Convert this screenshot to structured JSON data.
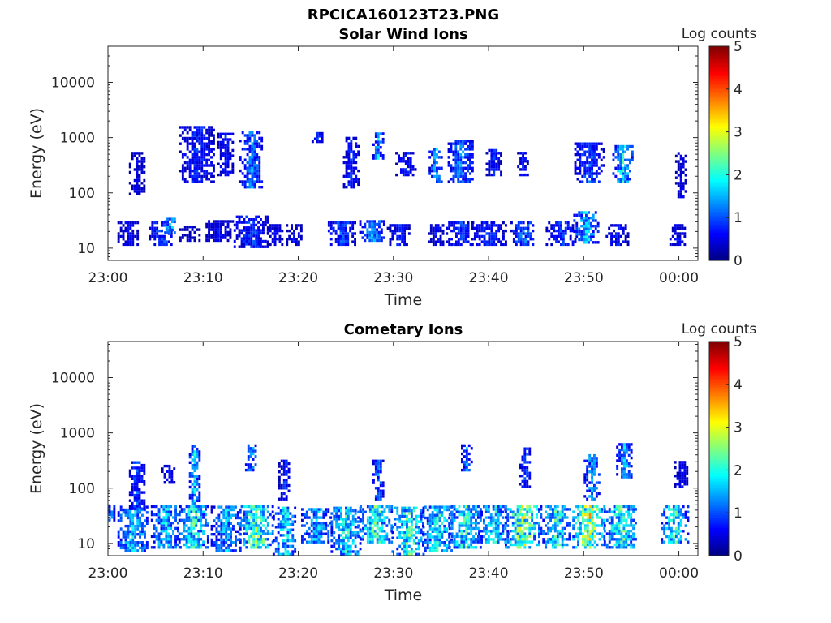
{
  "figure_title": "RPCICA160123T23.PNG",
  "chart_data": [
    {
      "type": "heatmap",
      "title": "Solar Wind Ions",
      "xlabel": "Time",
      "ylabel": "Energy (eV)",
      "x_range": [
        "23:00",
        "00:02"
      ],
      "x_ticks": [
        "23:00",
        "23:10",
        "23:20",
        "23:30",
        "23:40",
        "23:50",
        "00:00"
      ],
      "y_scale": "log",
      "y_range": [
        6,
        45000
      ],
      "y_ticks": [
        "10",
        "100",
        "1000",
        "10000"
      ],
      "colorbar": {
        "label": "Log counts",
        "range": [
          0,
          5
        ],
        "ticks": [
          "0",
          "1",
          "2",
          "3",
          "4",
          "5"
        ],
        "colormap": "jet"
      },
      "cell_minutes": 0.25,
      "clusters": [
        {
          "t": 2.0,
          "e": [
            11,
            30
          ],
          "v": 0.6,
          "s": 1.0
        },
        {
          "t": 3.0,
          "e": [
            90,
            550
          ],
          "v": 0.5,
          "s": 0.8
        },
        {
          "t": 5.5,
          "e": [
            11,
            30
          ],
          "v": 1.0,
          "s": 1.2
        },
        {
          "t": 6.5,
          "e": [
            18,
            35
          ],
          "v": 1.7,
          "s": 0.6
        },
        {
          "t": 8.5,
          "e": [
            13,
            25
          ],
          "v": 0.4,
          "s": 1.0
        },
        {
          "t": 9.3,
          "e": [
            150,
            1600
          ],
          "v": 0.8,
          "s": 1.8
        },
        {
          "t": 11.5,
          "e": [
            13,
            30
          ],
          "v": 0.6,
          "s": 1.5
        },
        {
          "t": 12.3,
          "e": [
            200,
            1200
          ],
          "v": 0.7,
          "s": 0.8
        },
        {
          "t": 15.0,
          "e": [
            10,
            35
          ],
          "v": 0.9,
          "s": 1.8
        },
        {
          "t": 15.0,
          "e": [
            120,
            1200
          ],
          "v": 1.2,
          "s": 1.2
        },
        {
          "t": 17.5,
          "e": [
            11,
            25
          ],
          "v": 0.6,
          "s": 0.8
        },
        {
          "t": 19.5,
          "e": [
            11,
            25
          ],
          "v": 0.6,
          "s": 0.8
        },
        {
          "t": 22.0,
          "e": [
            800,
            1200
          ],
          "v": 0.9,
          "s": 0.6
        },
        {
          "t": 24.5,
          "e": [
            11,
            30
          ],
          "v": 1.0,
          "s": 1.4
        },
        {
          "t": 25.5,
          "e": [
            120,
            1000
          ],
          "v": 0.8,
          "s": 0.8
        },
        {
          "t": 27.7,
          "e": [
            13,
            30
          ],
          "v": 1.3,
          "s": 1.3
        },
        {
          "t": 28.3,
          "e": [
            400,
            1200
          ],
          "v": 1.5,
          "s": 0.5
        },
        {
          "t": 30.5,
          "e": [
            11,
            25
          ],
          "v": 0.7,
          "s": 1.2
        },
        {
          "t": 31.2,
          "e": [
            200,
            500
          ],
          "v": 0.7,
          "s": 1.0
        },
        {
          "t": 34.4,
          "e": [
            11,
            25
          ],
          "v": 0.6,
          "s": 0.8
        },
        {
          "t": 34.4,
          "e": [
            150,
            600
          ],
          "v": 1.4,
          "s": 0.7
        },
        {
          "t": 37.0,
          "e": [
            11,
            30
          ],
          "v": 0.9,
          "s": 1.5
        },
        {
          "t": 37.0,
          "e": [
            150,
            900
          ],
          "v": 1.2,
          "s": 1.3
        },
        {
          "t": 40.0,
          "e": [
            11,
            30
          ],
          "v": 0.8,
          "s": 1.8
        },
        {
          "t": 40.5,
          "e": [
            200,
            600
          ],
          "v": 0.8,
          "s": 0.8
        },
        {
          "t": 43.5,
          "e": [
            11,
            30
          ],
          "v": 1.2,
          "s": 1.2
        },
        {
          "t": 43.5,
          "e": [
            200,
            500
          ],
          "v": 0.7,
          "s": 0.5
        },
        {
          "t": 47.5,
          "e": [
            11,
            30
          ],
          "v": 0.9,
          "s": 1.5
        },
        {
          "t": 50.2,
          "e": [
            12,
            45
          ],
          "v": 1.6,
          "s": 1.3
        },
        {
          "t": 50.5,
          "e": [
            150,
            800
          ],
          "v": 1.0,
          "s": 1.5
        },
        {
          "t": 53.5,
          "e": [
            11,
            25
          ],
          "v": 0.7,
          "s": 1.2
        },
        {
          "t": 54.0,
          "e": [
            150,
            700
          ],
          "v": 1.8,
          "s": 1.0
        },
        {
          "t": 59.8,
          "e": [
            11,
            25
          ],
          "v": 0.6,
          "s": 0.8
        },
        {
          "t": 60.2,
          "e": [
            80,
            500
          ],
          "v": 0.5,
          "s": 0.6
        }
      ]
    },
    {
      "type": "heatmap",
      "title": "Cometary Ions",
      "xlabel": "Time",
      "ylabel": "Energy (eV)",
      "x_range": [
        "23:00",
        "00:02"
      ],
      "x_ticks": [
        "23:00",
        "23:10",
        "23:20",
        "23:30",
        "23:40",
        "23:50",
        "00:00"
      ],
      "y_scale": "log",
      "y_range": [
        6,
        45000
      ],
      "y_ticks": [
        "10",
        "100",
        "1000",
        "10000"
      ],
      "colorbar": {
        "label": "Log counts",
        "range": [
          0,
          5
        ],
        "ticks": [
          "0",
          "1",
          "2",
          "3",
          "4",
          "5"
        ],
        "colormap": "jet"
      },
      "cell_minutes": 0.25,
      "clusters": [
        {
          "t": 0.2,
          "e": [
            25,
            45
          ],
          "v": 1.2,
          "s": 0.4
        },
        {
          "t": 2.5,
          "e": [
            7,
            45
          ],
          "v": 1.8,
          "s": 1.5
        },
        {
          "t": 3.0,
          "e": [
            40,
            300
          ],
          "v": 1.0,
          "s": 0.8
        },
        {
          "t": 6.0,
          "e": [
            8,
            45
          ],
          "v": 1.6,
          "s": 1.5
        },
        {
          "t": 6.3,
          "e": [
            120,
            250
          ],
          "v": 0.6,
          "s": 0.7
        },
        {
          "t": 9.0,
          "e": [
            8,
            45
          ],
          "v": 2.0,
          "s": 1.6
        },
        {
          "t": 9.0,
          "e": [
            50,
            600
          ],
          "v": 1.6,
          "s": 0.5
        },
        {
          "t": 12.3,
          "e": [
            7,
            45
          ],
          "v": 1.5,
          "s": 1.5
        },
        {
          "t": 15.5,
          "e": [
            8,
            45
          ],
          "v": 2.4,
          "s": 1.8
        },
        {
          "t": 15.0,
          "e": [
            200,
            600
          ],
          "v": 1.4,
          "s": 0.6
        },
        {
          "t": 18.5,
          "e": [
            6,
            45
          ],
          "v": 1.8,
          "s": 1.2
        },
        {
          "t": 18.5,
          "e": [
            60,
            300
          ],
          "v": 0.8,
          "s": 0.6
        },
        {
          "t": 21.8,
          "e": [
            10,
            40
          ],
          "v": 1.6,
          "s": 1.5
        },
        {
          "t": 25.0,
          "e": [
            6,
            45
          ],
          "v": 1.9,
          "s": 1.6
        },
        {
          "t": 28.0,
          "e": [
            10,
            45
          ],
          "v": 2.1,
          "s": 1.8
        },
        {
          "t": 28.3,
          "e": [
            60,
            300
          ],
          "v": 1.2,
          "s": 0.5
        },
        {
          "t": 31.5,
          "e": [
            6,
            45
          ],
          "v": 2.1,
          "s": 1.7
        },
        {
          "t": 34.6,
          "e": [
            7,
            45
          ],
          "v": 1.9,
          "s": 1.6
        },
        {
          "t": 37.5,
          "e": [
            8,
            45
          ],
          "v": 2.0,
          "s": 1.7
        },
        {
          "t": 37.6,
          "e": [
            200,
            600
          ],
          "v": 1.3,
          "s": 0.5
        },
        {
          "t": 40.5,
          "e": [
            10,
            45
          ],
          "v": 1.8,
          "s": 1.6
        },
        {
          "t": 43.5,
          "e": [
            8,
            45
          ],
          "v": 2.6,
          "s": 1.8
        },
        {
          "t": 43.8,
          "e": [
            100,
            500
          ],
          "v": 1.0,
          "s": 0.6
        },
        {
          "t": 47.0,
          "e": [
            8,
            45
          ],
          "v": 2.0,
          "s": 1.6
        },
        {
          "t": 50.5,
          "e": [
            8,
            45
          ],
          "v": 2.8,
          "s": 1.7
        },
        {
          "t": 50.8,
          "e": [
            60,
            400
          ],
          "v": 1.4,
          "s": 0.8
        },
        {
          "t": 53.8,
          "e": [
            8,
            45
          ],
          "v": 2.2,
          "s": 1.7
        },
        {
          "t": 54.2,
          "e": [
            150,
            600
          ],
          "v": 1.5,
          "s": 0.8
        },
        {
          "t": 59.5,
          "e": [
            10,
            45
          ],
          "v": 2.0,
          "s": 1.4
        },
        {
          "t": 60.2,
          "e": [
            100,
            300
          ],
          "v": 0.6,
          "s": 0.7
        }
      ]
    }
  ]
}
